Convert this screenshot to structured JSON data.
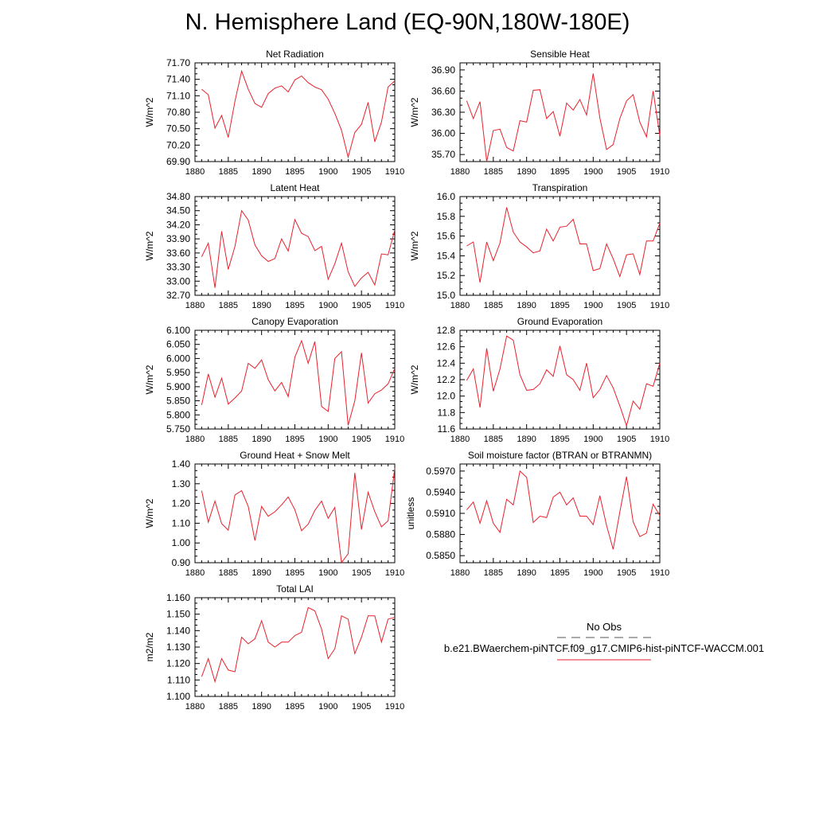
{
  "title": "N. Hemisphere Land (EQ-90N,180W-180E)",
  "legend": {
    "obs_label": "No Obs",
    "obs_color": "#555555",
    "model_label": "b.e21.BWaerchem-piNTCF.f09_g17.CMIP6-hist-piNTCF-WACCM.001",
    "model_color": "#e8212d"
  },
  "chart_data": [
    {
      "type": "line",
      "title": "Net Radiation",
      "ylabel": "W/m^2",
      "xlim": [
        1880,
        1910
      ],
      "ylim": [
        69.9,
        71.7
      ],
      "xticks": [
        "1880",
        "1885",
        "1890",
        "1895",
        "1900",
        "1905",
        "1910"
      ],
      "yticks": [
        "69.90",
        "70.20",
        "70.50",
        "70.80",
        "71.10",
        "71.40",
        "71.70"
      ],
      "series": [
        {
          "x": [
            1881,
            1882,
            1883,
            1884,
            1885,
            1886,
            1887,
            1888,
            1889,
            1890,
            1891,
            1892,
            1893,
            1894,
            1895,
            1896,
            1897,
            1898,
            1899,
            1900,
            1901,
            1902,
            1903,
            1904,
            1905,
            1906,
            1907,
            1908,
            1909,
            1910
          ],
          "values": [
            71.22,
            71.12,
            70.51,
            70.74,
            70.34,
            71.0,
            71.55,
            71.22,
            70.96,
            70.89,
            71.14,
            71.24,
            71.28,
            71.17,
            71.39,
            71.46,
            71.34,
            71.26,
            71.21,
            71.04,
            70.78,
            70.47,
            69.98,
            70.43,
            70.58,
            70.98,
            70.26,
            70.62,
            71.26,
            71.37
          ]
        }
      ]
    },
    {
      "type": "line",
      "title": "Sensible Heat",
      "ylabel": "W/m^2",
      "xlim": [
        1880,
        1910
      ],
      "ylim": [
        35.6,
        37.0
      ],
      "xticks": [
        "1880",
        "1885",
        "1890",
        "1895",
        "1900",
        "1905",
        "1910"
      ],
      "yticks": [
        "35.70",
        "36.00",
        "36.30",
        "36.60",
        "36.90"
      ],
      "series": [
        {
          "x": [
            1881,
            1882,
            1883,
            1884,
            1885,
            1886,
            1887,
            1888,
            1889,
            1890,
            1891,
            1892,
            1893,
            1894,
            1895,
            1896,
            1897,
            1898,
            1899,
            1900,
            1901,
            1902,
            1903,
            1904,
            1905,
            1906,
            1907,
            1908,
            1909,
            1910
          ],
          "values": [
            36.46,
            36.21,
            36.45,
            35.6,
            36.04,
            36.06,
            35.8,
            35.75,
            36.18,
            36.16,
            36.61,
            36.62,
            36.21,
            36.31,
            35.96,
            36.43,
            36.33,
            36.48,
            36.26,
            36.85,
            36.22,
            35.77,
            35.84,
            36.21,
            36.46,
            36.55,
            36.16,
            35.95,
            36.6,
            35.97
          ]
        }
      ]
    },
    {
      "type": "line",
      "title": "Latent Heat",
      "ylabel": "W/m^2",
      "xlim": [
        1880,
        1910
      ],
      "ylim": [
        32.7,
        34.8
      ],
      "xticks": [
        "1880",
        "1885",
        "1890",
        "1895",
        "1900",
        "1905",
        "1910"
      ],
      "yticks": [
        "32.70",
        "33.00",
        "33.30",
        "33.60",
        "33.90",
        "34.20",
        "34.50",
        "34.80"
      ],
      "series": [
        {
          "x": [
            1881,
            1882,
            1883,
            1884,
            1885,
            1886,
            1887,
            1888,
            1889,
            1890,
            1891,
            1892,
            1893,
            1894,
            1895,
            1896,
            1897,
            1898,
            1899,
            1900,
            1901,
            1902,
            1903,
            1904,
            1905,
            1906,
            1907,
            1908,
            1909,
            1910
          ],
          "values": [
            33.52,
            33.81,
            32.86,
            34.06,
            33.25,
            33.74,
            34.5,
            34.3,
            33.77,
            33.54,
            33.42,
            33.48,
            33.9,
            33.64,
            34.31,
            34.02,
            33.95,
            33.65,
            33.74,
            33.04,
            33.37,
            33.81,
            33.2,
            32.89,
            33.07,
            33.19,
            32.92,
            33.58,
            33.56,
            34.09
          ]
        }
      ]
    },
    {
      "type": "line",
      "title": "Transpiration",
      "ylabel": "W/m^2",
      "xlim": [
        1880,
        1910
      ],
      "ylim": [
        15.0,
        16.0
      ],
      "xticks": [
        "1880",
        "1885",
        "1890",
        "1895",
        "1900",
        "1905",
        "1910"
      ],
      "yticks": [
        "15.0",
        "15.2",
        "15.4",
        "15.6",
        "15.8",
        "16.0"
      ],
      "series": [
        {
          "x": [
            1881,
            1882,
            1883,
            1884,
            1885,
            1886,
            1887,
            1888,
            1889,
            1890,
            1891,
            1892,
            1893,
            1894,
            1895,
            1896,
            1897,
            1898,
            1899,
            1900,
            1901,
            1902,
            1903,
            1904,
            1905,
            1906,
            1907,
            1908,
            1909,
            1910
          ],
          "values": [
            15.5,
            15.54,
            15.13,
            15.54,
            15.35,
            15.53,
            15.89,
            15.64,
            15.54,
            15.49,
            15.43,
            15.45,
            15.67,
            15.55,
            15.69,
            15.7,
            15.77,
            15.52,
            15.52,
            15.25,
            15.27,
            15.52,
            15.37,
            15.19,
            15.41,
            15.42,
            15.21,
            15.55,
            15.55,
            15.73
          ]
        }
      ]
    },
    {
      "type": "line",
      "title": "Canopy Evaporation",
      "ylabel": "W/m^2",
      "xlim": [
        1880,
        1910
      ],
      "ylim": [
        5.75,
        6.1
      ],
      "xticks": [
        "1880",
        "1885",
        "1890",
        "1895",
        "1900",
        "1905",
        "1910"
      ],
      "yticks": [
        "5.750",
        "5.800",
        "5.850",
        "5.900",
        "5.950",
        "6.000",
        "6.050",
        "6.100"
      ],
      "series": [
        {
          "x": [
            1881,
            1882,
            1883,
            1884,
            1885,
            1886,
            1887,
            1888,
            1889,
            1890,
            1891,
            1892,
            1893,
            1894,
            1895,
            1896,
            1897,
            1898,
            1899,
            1900,
            1901,
            1902,
            1903,
            1904,
            1905,
            1906,
            1907,
            1908,
            1909,
            1910
          ],
          "values": [
            5.835,
            5.945,
            5.863,
            5.93,
            5.838,
            5.86,
            5.885,
            5.983,
            5.965,
            5.995,
            5.925,
            5.885,
            5.915,
            5.865,
            6.005,
            6.063,
            5.983,
            6.06,
            5.83,
            5.812,
            6.0,
            6.024,
            5.763,
            5.85,
            6.02,
            5.842,
            5.875,
            5.888,
            5.91,
            5.965
          ]
        }
      ]
    },
    {
      "type": "line",
      "title": "Ground Evaporation",
      "ylabel": "W/m^2",
      "xlim": [
        1880,
        1910
      ],
      "ylim": [
        11.6,
        12.8
      ],
      "xticks": [
        "1880",
        "1885",
        "1890",
        "1895",
        "1900",
        "1905",
        "1910"
      ],
      "yticks": [
        "11.6",
        "11.8",
        "12.0",
        "12.2",
        "12.4",
        "12.6",
        "12.8"
      ],
      "series": [
        {
          "x": [
            1881,
            1882,
            1883,
            1884,
            1885,
            1886,
            1887,
            1888,
            1889,
            1890,
            1891,
            1892,
            1893,
            1894,
            1895,
            1896,
            1897,
            1898,
            1899,
            1900,
            1901,
            1902,
            1903,
            1904,
            1905,
            1906,
            1907,
            1908,
            1909,
            1910
          ],
          "values": [
            12.19,
            12.33,
            11.86,
            12.58,
            12.06,
            12.33,
            12.73,
            12.68,
            12.26,
            12.07,
            12.08,
            12.15,
            12.32,
            12.24,
            12.61,
            12.26,
            12.2,
            12.07,
            12.4,
            11.98,
            12.08,
            12.25,
            12.1,
            11.88,
            11.64,
            11.94,
            11.84,
            12.15,
            12.12,
            12.4
          ]
        }
      ]
    },
    {
      "type": "line",
      "title": "Ground Heat + Snow Melt",
      "ylabel": "W/m^2",
      "xlim": [
        1880,
        1910
      ],
      "ylim": [
        0.9,
        1.4
      ],
      "xticks": [
        "1880",
        "1885",
        "1890",
        "1895",
        "1900",
        "1905",
        "1910"
      ],
      "yticks": [
        "0.90",
        "1.00",
        "1.10",
        "1.20",
        "1.30",
        "1.40"
      ],
      "series": [
        {
          "x": [
            1881,
            1882,
            1883,
            1884,
            1885,
            1886,
            1887,
            1888,
            1889,
            1890,
            1891,
            1892,
            1893,
            1894,
            1895,
            1896,
            1897,
            1898,
            1899,
            1900,
            1901,
            1902,
            1903,
            1904,
            1905,
            1906,
            1907,
            1908,
            1909,
            1910
          ],
          "values": [
            1.265,
            1.105,
            1.212,
            1.098,
            1.065,
            1.243,
            1.265,
            1.185,
            1.012,
            1.185,
            1.135,
            1.158,
            1.193,
            1.233,
            1.168,
            1.062,
            1.095,
            1.165,
            1.212,
            1.125,
            1.18,
            0.9,
            0.945,
            1.355,
            1.068,
            1.257,
            1.158,
            1.082,
            1.112,
            1.38
          ]
        }
      ]
    },
    {
      "type": "line",
      "title": "Soil moisture factor (BTRAN or BTRANMN)",
      "ylabel": "unitless",
      "xlim": [
        1880,
        1910
      ],
      "ylim": [
        0.584,
        0.598
      ],
      "xticks": [
        "1880",
        "1885",
        "1890",
        "1895",
        "1900",
        "1905",
        "1910"
      ],
      "yticks": [
        "0.5850",
        "0.5880",
        "0.5910",
        "0.5940",
        "0.5970"
      ],
      "series": [
        {
          "x": [
            1881,
            1882,
            1883,
            1884,
            1885,
            1886,
            1887,
            1888,
            1889,
            1890,
            1891,
            1892,
            1893,
            1894,
            1895,
            1896,
            1897,
            1898,
            1899,
            1900,
            1901,
            1902,
            1903,
            1904,
            1905,
            1906,
            1907,
            1908,
            1909,
            1910
          ],
          "values": [
            0.5915,
            0.5926,
            0.5896,
            0.5928,
            0.5896,
            0.5883,
            0.593,
            0.5922,
            0.597,
            0.5961,
            0.5897,
            0.5906,
            0.5904,
            0.5933,
            0.594,
            0.5922,
            0.5932,
            0.5906,
            0.5906,
            0.5894,
            0.5935,
            0.5893,
            0.5859,
            0.5912,
            0.5962,
            0.5898,
            0.5877,
            0.5882,
            0.5923,
            0.5907
          ]
        }
      ]
    },
    {
      "type": "line",
      "title": "Total LAI",
      "ylabel": "m2/m2",
      "xlim": [
        1880,
        1910
      ],
      "ylim": [
        1.1,
        1.16
      ],
      "xticks": [
        "1880",
        "1885",
        "1890",
        "1895",
        "1900",
        "1905",
        "1910"
      ],
      "yticks": [
        "1.100",
        "1.110",
        "1.120",
        "1.130",
        "1.140",
        "1.150",
        "1.160"
      ],
      "series": [
        {
          "x": [
            1881,
            1882,
            1883,
            1884,
            1885,
            1886,
            1887,
            1888,
            1889,
            1890,
            1891,
            1892,
            1893,
            1894,
            1895,
            1896,
            1897,
            1898,
            1899,
            1900,
            1901,
            1902,
            1903,
            1904,
            1905,
            1906,
            1907,
            1908,
            1909,
            1910
          ],
          "values": [
            1.112,
            1.123,
            1.109,
            1.123,
            1.116,
            1.115,
            1.136,
            1.132,
            1.135,
            1.146,
            1.133,
            1.13,
            1.133,
            1.133,
            1.137,
            1.139,
            1.154,
            1.152,
            1.141,
            1.123,
            1.129,
            1.149,
            1.147,
            1.126,
            1.136,
            1.149,
            1.149,
            1.133,
            1.147,
            1.148
          ]
        }
      ]
    }
  ]
}
